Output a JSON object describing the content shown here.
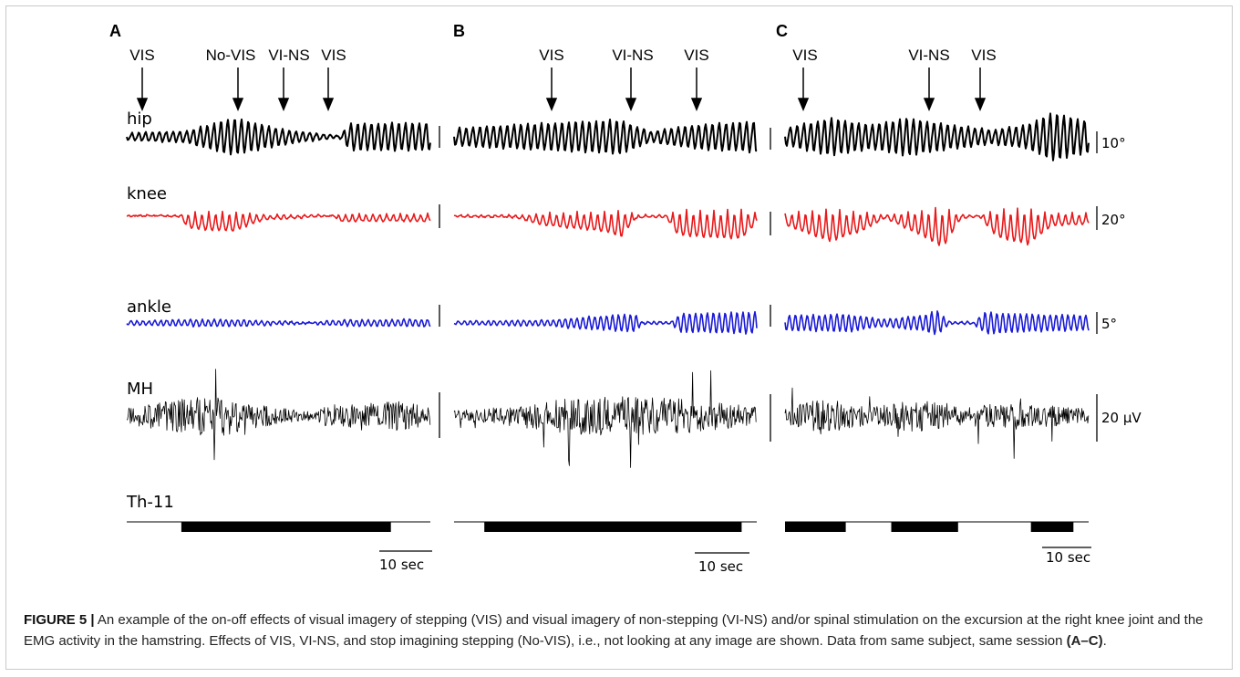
{
  "figure": {
    "panels": [
      {
        "label": "A",
        "events": [
          "VIS",
          "No-VIS",
          "VI-NS",
          "VIS"
        ],
        "stim_on_fraction": [
          [
            0.18,
            0.87
          ]
        ],
        "time_scale": "10 sec",
        "scale_labels": {
          "hip": "",
          "knee": "",
          "ankle": "",
          "mh": ""
        }
      },
      {
        "label": "B",
        "events": [
          "VIS",
          "VI-NS",
          "VIS"
        ],
        "stim_on_fraction": [
          [
            0.1,
            0.95
          ]
        ],
        "time_scale": "10 sec",
        "scale_labels": {
          "hip": "",
          "knee": "",
          "ankle": "",
          "mh": ""
        }
      },
      {
        "label": "C",
        "events": [
          "VIS",
          "VI-NS",
          "VIS"
        ],
        "stim_on_fraction": [
          [
            0.0,
            0.2
          ],
          [
            0.35,
            0.57
          ],
          [
            0.81,
            0.95
          ]
        ],
        "time_scale": "10 sec",
        "scale_labels": {
          "hip": "10°",
          "knee": "20°",
          "ankle": "5°",
          "mh": "20 µV"
        }
      }
    ],
    "row_labels": {
      "hip": "hip",
      "knee": "knee",
      "ankle": "ankle",
      "mh": "MH",
      "th": "Th-11"
    },
    "colors": {
      "hip": "#000000",
      "knee": "#e8191b",
      "ankle": "#1a1ad6",
      "mh": "#000000"
    }
  },
  "caption": {
    "label": "FIGURE 5 |",
    "text": "An example of the on-off effects of visual imagery of stepping (VIS) and visual imagery of non-stepping (VI-NS) and/or spinal stimulation on the excursion at the right knee joint and the EMG activity in the hamstring. Effects of VIS, VI-NS, and stop imagining stepping (No-VIS), i.e., not looking at any image are shown. Data from same subject, same session",
    "bold_ref": "(A–C)",
    "end": "."
  }
}
